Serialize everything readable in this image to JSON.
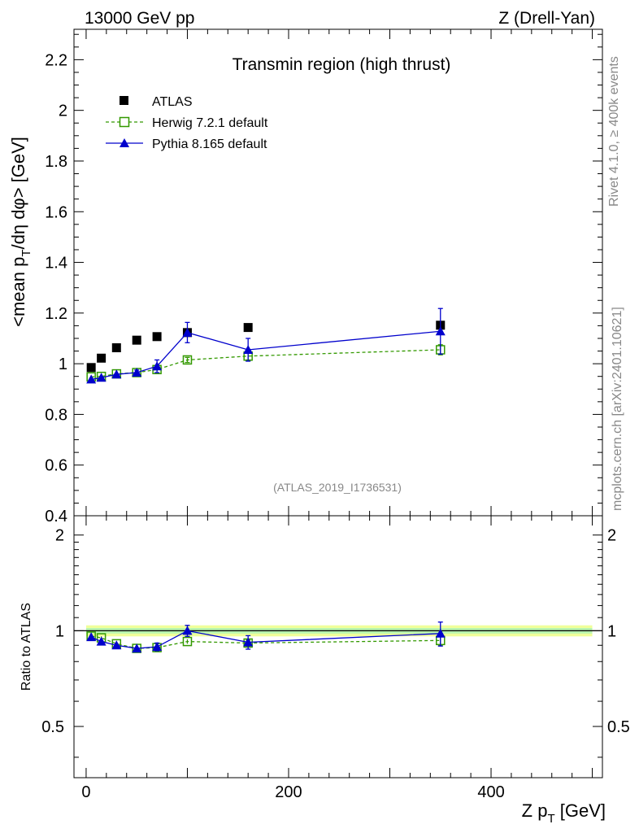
{
  "header": {
    "energy_label": "13000 GeV pp",
    "process_label": "Z (Drell-Yan)"
  },
  "side_labels": {
    "rivet": "Rivet 4.1.0, ≥ 400k events",
    "mcplots": "mcplots.cern.ch [arXiv:2401.10621]"
  },
  "chart_data": [
    {
      "type": "scatter",
      "title": "Transmin region (high thrust)",
      "watermark": "(ATLAS_2019_I1736531)",
      "xlabel": "Z p_T [GeV]",
      "ylabel": "<mean p_T/dη dφ> [GeV]",
      "xlim": [
        -12,
        510
      ],
      "ylim": [
        0.4,
        2.32
      ],
      "yticks": [
        "0.4",
        "0.6",
        "0.8",
        "1",
        "1.2",
        "1.4",
        "1.6",
        "1.8",
        "2",
        "2.2"
      ],
      "legend": [
        "ATLAS",
        "Herwig 7.2.1 default",
        "Pythia 8.165 default"
      ],
      "legend_position": "top-left",
      "series": [
        {
          "name": "ATLAS",
          "color": "#000000",
          "marker": "filled-square",
          "x": [
            5,
            15,
            30,
            50,
            70,
            100,
            160,
            350
          ],
          "y": [
            0.985,
            1.022,
            1.063,
            1.093,
            1.107,
            1.123,
            1.143,
            1.152
          ],
          "err": [
            0.005,
            0.005,
            0.005,
            0.006,
            0.006,
            0.008,
            0.008,
            0.012
          ]
        },
        {
          "name": "Herwig 7.2.1 default",
          "color": "#339900",
          "marker": "open-square",
          "line": "dashed",
          "x": [
            5,
            15,
            30,
            50,
            70,
            100,
            160,
            350
          ],
          "y": [
            0.948,
            0.95,
            0.96,
            0.965,
            0.977,
            1.015,
            1.03,
            1.055
          ],
          "err": [
            0.004,
            0.004,
            0.005,
            0.006,
            0.007,
            0.01,
            0.015,
            0.02
          ]
        },
        {
          "name": "Pythia 8.165 default",
          "color": "#0000cc",
          "marker": "filled-triangle",
          "line": "solid",
          "x": [
            5,
            15,
            30,
            50,
            70,
            100,
            160,
            350
          ],
          "y": [
            0.938,
            0.945,
            0.958,
            0.965,
            0.99,
            1.123,
            1.055,
            1.128
          ],
          "err": [
            0.005,
            0.006,
            0.008,
            0.01,
            0.025,
            0.04,
            0.045,
            0.09
          ]
        }
      ]
    },
    {
      "type": "scatter",
      "ylabel": "Ratio to ATLAS",
      "xlabel": "Z p_T [GeV]",
      "xlim": [
        -12,
        510
      ],
      "ylim": [
        0.345,
        2.3
      ],
      "yscale": "log",
      "yticks": [
        "0.5",
        "1",
        "2"
      ],
      "xticks": [
        "0",
        "200",
        "400"
      ],
      "reference_line": 1,
      "series": [
        {
          "name": "Herwig 7.2.1 default",
          "color": "#339900",
          "marker": "open-square",
          "line": "dashed",
          "x": [
            5,
            15,
            30,
            50,
            70,
            100,
            160,
            350
          ],
          "y": [
            0.962,
            0.95,
            0.91,
            0.88,
            0.885,
            0.925,
            0.915,
            0.932
          ],
          "err": [
            0.01,
            0.01,
            0.012,
            0.012,
            0.012,
            0.015,
            0.02,
            0.03
          ]
        },
        {
          "name": "Pythia 8.165 default",
          "color": "#0000cc",
          "marker": "filled-triangle",
          "line": "solid",
          "x": [
            5,
            15,
            30,
            50,
            70,
            100,
            160,
            350
          ],
          "y": [
            0.955,
            0.925,
            0.9,
            0.88,
            0.89,
            1.0,
            0.92,
            0.98
          ],
          "err": [
            0.01,
            0.012,
            0.015,
            0.015,
            0.025,
            0.04,
            0.045,
            0.085
          ]
        }
      ]
    }
  ]
}
